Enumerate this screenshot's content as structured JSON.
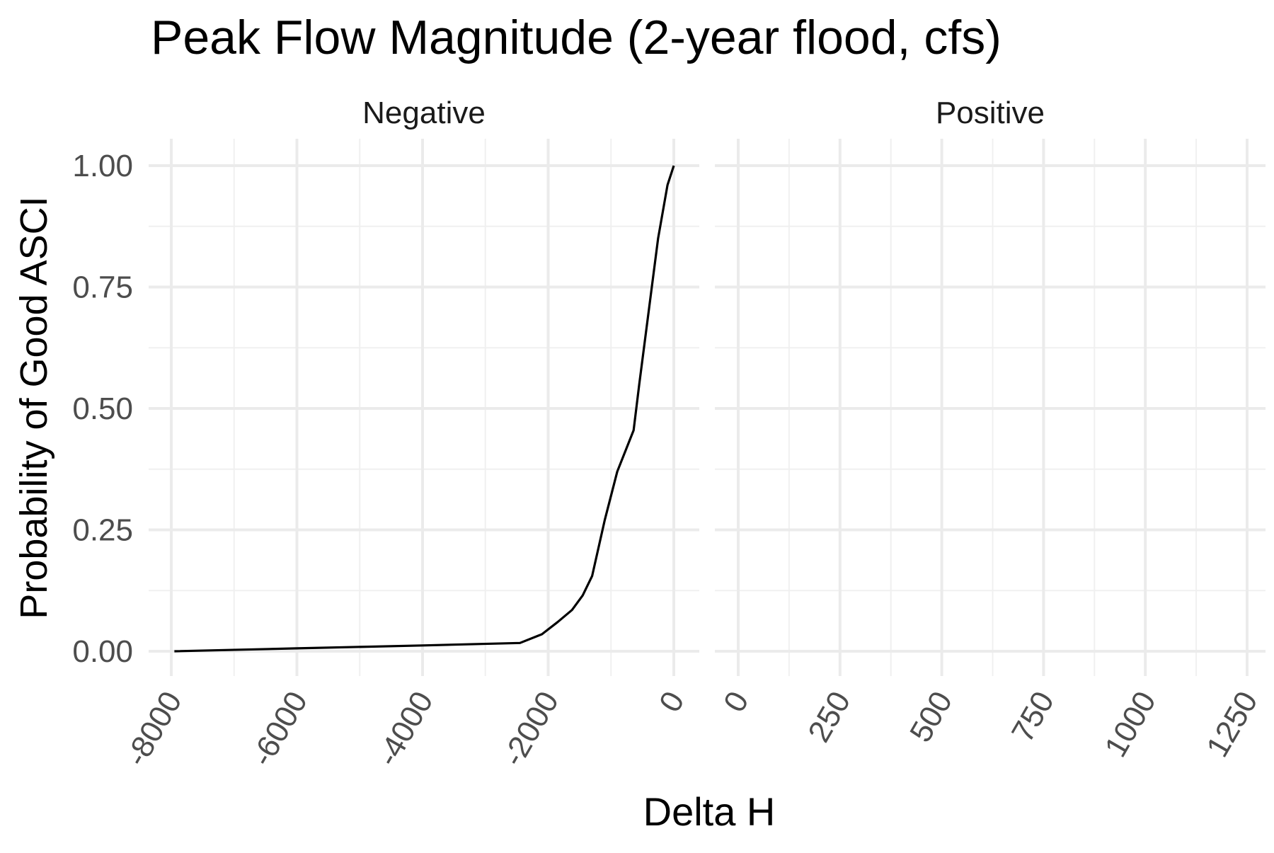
{
  "chart_data": {
    "type": "line",
    "title": "Peak Flow Magnitude (2-year flood, cfs)",
    "xlabel": "Delta H",
    "ylabel": "Probability of Good ASCI",
    "ylim": [
      0,
      1
    ],
    "y_ticks": [
      "0.00",
      "0.25",
      "0.50",
      "0.75",
      "1.00"
    ],
    "y_tick_values": [
      0,
      0.25,
      0.5,
      0.75,
      1.0
    ],
    "grid": true,
    "panels": [
      {
        "name": "Negative",
        "xlim": [
          -8000,
          0
        ],
        "x_tick_values": [
          -8000,
          -6000,
          -4000,
          -2000,
          0
        ],
        "x_ticks": [
          "-8000",
          "-6000",
          "-4000",
          "-2000",
          "0"
        ],
        "series": [
          {
            "x": [
              -7950,
              -6000,
              -4000,
              -2450,
              -2100,
              -1850,
              -1620,
              -1450,
              -1300,
              -1100,
              -900,
              -640,
              -550,
              -400,
              -250,
              -100,
              0
            ],
            "y": [
              0.0,
              0.006,
              0.012,
              0.017,
              0.035,
              0.06,
              0.085,
              0.115,
              0.155,
              0.27,
              0.37,
              0.455,
              0.55,
              0.7,
              0.85,
              0.96,
              1.0
            ]
          }
        ]
      },
      {
        "name": "Positive",
        "xlim": [
          0,
          1250
        ],
        "x_tick_values": [
          0,
          250,
          500,
          750,
          1000,
          1250
        ],
        "x_ticks": [
          "0",
          "250",
          "500",
          "750",
          "1000",
          "1250"
        ],
        "series": []
      }
    ]
  }
}
